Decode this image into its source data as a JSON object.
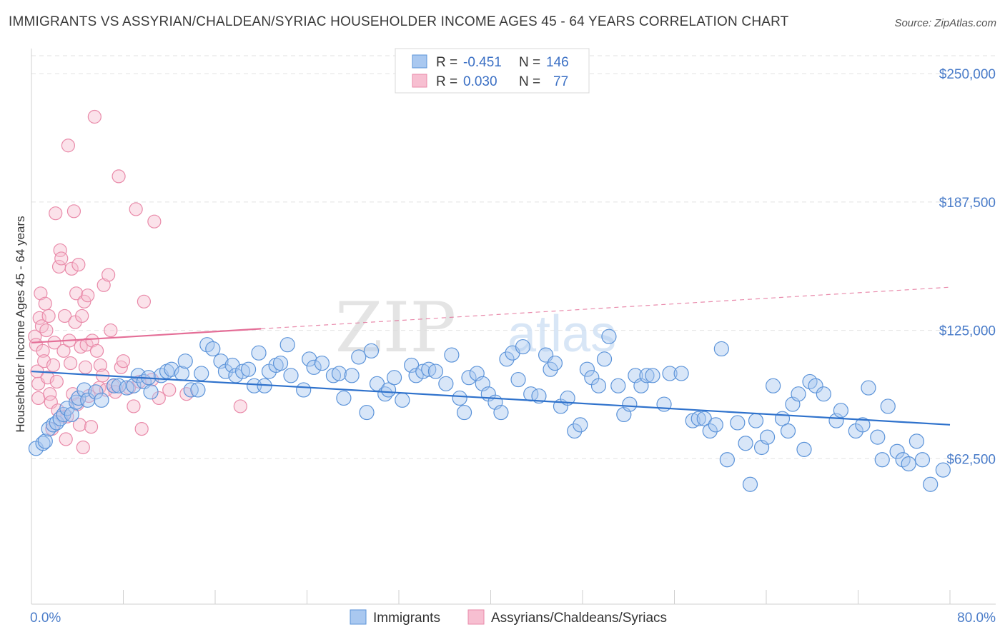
{
  "title": "IMMIGRANTS VS ASSYRIAN/CHALDEAN/SYRIAC HOUSEHOLDER INCOME AGES 45 - 64 YEARS CORRELATION CHART",
  "source": "Source: ZipAtlas.com",
  "watermark": {
    "zip": "ZIP",
    "atlas": "atlas"
  },
  "colors": {
    "blue_fill": "#a9c8f0",
    "blue_stroke": "#5b93d9",
    "blue_line": "#2f72cc",
    "pink_fill": "#f7bfd1",
    "pink_stroke": "#e98aa9",
    "pink_line": "#e46e97",
    "grid": "#e2e2e2",
    "tick_label": "#4a7cc9"
  },
  "legend": {
    "rows": [
      {
        "r_label": "R =",
        "r_value": "-0.451",
        "n_label": "N =",
        "n_value": "146"
      },
      {
        "r_label": "R =",
        "r_value": "0.030",
        "n_label": "N =",
        "n_value": "77"
      }
    ]
  },
  "chart_data": {
    "type": "scatter",
    "title": "IMMIGRANTS VS ASSYRIAN/CHALDEAN/SYRIAC HOUSEHOLDER INCOME AGES 45 - 64 YEARS CORRELATION CHART",
    "xlabel": "",
    "ylabel": "Householder Income Ages 45 - 64 years",
    "xlim": [
      0,
      80
    ],
    "ylim": [
      0,
      265000
    ],
    "x_tick_labels": [
      "0.0%",
      "80.0%"
    ],
    "y_ticks": [
      62500,
      125000,
      187500,
      250000
    ],
    "y_tick_labels": [
      "$62,500",
      "$125,000",
      "$187,500",
      "$250,000"
    ],
    "grid": true,
    "legend_position": "top-center",
    "series": [
      {
        "name": "Immigrants",
        "R": -0.451,
        "N": 146,
        "trend": {
          "x": [
            0,
            80
          ],
          "y": [
            105000,
            79000
          ],
          "dashed_from": null
        },
        "points": [
          [
            0.4,
            67500
          ],
          [
            1.0,
            70000
          ],
          [
            1.2,
            71000
          ],
          [
            1.5,
            77000
          ],
          [
            1.9,
            79000
          ],
          [
            2.2,
            80000
          ],
          [
            2.5,
            82000
          ],
          [
            2.8,
            84000
          ],
          [
            3.1,
            87000
          ],
          [
            3.5,
            84000
          ],
          [
            3.9,
            90000
          ],
          [
            4.1,
            92000
          ],
          [
            4.6,
            96000
          ],
          [
            4.9,
            91000
          ],
          [
            5.6,
            95000
          ],
          [
            6.1,
            91000
          ],
          [
            7.2,
            98000
          ],
          [
            7.6,
            98000
          ],
          [
            8.3,
            97000
          ],
          [
            8.9,
            98000
          ],
          [
            9.3,
            103000
          ],
          [
            9.8,
            100000
          ],
          [
            10.2,
            102000
          ],
          [
            10.4,
            95000
          ],
          [
            11.3,
            103000
          ],
          [
            11.8,
            105000
          ],
          [
            12.2,
            106000
          ],
          [
            13.1,
            104000
          ],
          [
            13.4,
            110000
          ],
          [
            13.9,
            96000
          ],
          [
            14.5,
            96000
          ],
          [
            14.8,
            104000
          ],
          [
            15.3,
            118000
          ],
          [
            15.8,
            116000
          ],
          [
            16.5,
            110000
          ],
          [
            16.9,
            105000
          ],
          [
            17.5,
            108000
          ],
          [
            17.8,
            103000
          ],
          [
            18.4,
            105000
          ],
          [
            18.9,
            106000
          ],
          [
            19.4,
            98000
          ],
          [
            19.8,
            114000
          ],
          [
            20.3,
            98000
          ],
          [
            20.7,
            105000
          ],
          [
            21.3,
            108000
          ],
          [
            21.7,
            109000
          ],
          [
            22.3,
            118000
          ],
          [
            22.6,
            103000
          ],
          [
            23.7,
            96000
          ],
          [
            24.2,
            111000
          ],
          [
            24.6,
            107000
          ],
          [
            25.3,
            109000
          ],
          [
            26.3,
            103000
          ],
          [
            26.8,
            104000
          ],
          [
            27.2,
            92000
          ],
          [
            27.9,
            103000
          ],
          [
            28.5,
            112000
          ],
          [
            29.2,
            85000
          ],
          [
            29.6,
            115000
          ],
          [
            30.1,
            99000
          ],
          [
            30.8,
            94000
          ],
          [
            31.1,
            96000
          ],
          [
            31.6,
            102000
          ],
          [
            32.3,
            91000
          ],
          [
            33.1,
            108000
          ],
          [
            33.5,
            103000
          ],
          [
            34.1,
            105000
          ],
          [
            34.6,
            106000
          ],
          [
            35.2,
            105000
          ],
          [
            36.1,
            99000
          ],
          [
            36.6,
            113000
          ],
          [
            37.3,
            92000
          ],
          [
            37.7,
            85000
          ],
          [
            38.1,
            102000
          ],
          [
            38.8,
            104000
          ],
          [
            39.3,
            99000
          ],
          [
            39.8,
            94000
          ],
          [
            40.4,
            90000
          ],
          [
            40.9,
            85000
          ],
          [
            41.4,
            111000
          ],
          [
            41.9,
            114000
          ],
          [
            42.4,
            101000
          ],
          [
            42.8,
            117000
          ],
          [
            43.5,
            94000
          ],
          [
            44.2,
            93000
          ],
          [
            44.8,
            113000
          ],
          [
            45.2,
            106000
          ],
          [
            45.6,
            109000
          ],
          [
            46.1,
            88000
          ],
          [
            46.7,
            92000
          ],
          [
            47.3,
            76000
          ],
          [
            47.8,
            79000
          ],
          [
            48.4,
            106000
          ],
          [
            48.8,
            102000
          ],
          [
            49.4,
            98000
          ],
          [
            49.9,
            111000
          ],
          [
            50.3,
            122000
          ],
          [
            51.1,
            98000
          ],
          [
            51.6,
            84000
          ],
          [
            52.1,
            89000
          ],
          [
            52.6,
            103000
          ],
          [
            53.1,
            98000
          ],
          [
            53.6,
            103000
          ],
          [
            54.1,
            103000
          ],
          [
            55.1,
            89000
          ],
          [
            55.6,
            104000
          ],
          [
            56.6,
            104000
          ],
          [
            57.6,
            81000
          ],
          [
            58.1,
            82000
          ],
          [
            58.6,
            82000
          ],
          [
            59.1,
            76000
          ],
          [
            59.6,
            79000
          ],
          [
            60.1,
            116000
          ],
          [
            60.6,
            62000
          ],
          [
            61.5,
            80000
          ],
          [
            62.2,
            70000
          ],
          [
            62.6,
            50000
          ],
          [
            63.1,
            81000
          ],
          [
            63.6,
            68000
          ],
          [
            64.1,
            73000
          ],
          [
            64.6,
            98000
          ],
          [
            65.4,
            82000
          ],
          [
            65.9,
            76000
          ],
          [
            66.3,
            89000
          ],
          [
            66.8,
            94000
          ],
          [
            67.3,
            67000
          ],
          [
            67.8,
            100000
          ],
          [
            68.3,
            98000
          ],
          [
            69.0,
            94000
          ],
          [
            70.1,
            81000
          ],
          [
            70.5,
            86000
          ],
          [
            71.8,
            76000
          ],
          [
            72.4,
            79000
          ],
          [
            72.9,
            97000
          ],
          [
            73.7,
            73000
          ],
          [
            74.1,
            62000
          ],
          [
            74.6,
            88000
          ],
          [
            75.4,
            66000
          ],
          [
            75.9,
            62000
          ],
          [
            76.4,
            60000
          ],
          [
            77.1,
            71000
          ],
          [
            77.6,
            62000
          ],
          [
            78.3,
            50000
          ],
          [
            79.4,
            57000
          ]
        ]
      },
      {
        "name": "Assyrians/Chaldeans/Syriacs",
        "R": 0.03,
        "N": 77,
        "trend": {
          "x": [
            0,
            80
          ],
          "y": [
            119000,
            146000
          ],
          "solid_until_x": 20
        },
        "points": [
          [
            0.3,
            122000
          ],
          [
            0.4,
            118000
          ],
          [
            0.5,
            105000
          ],
          [
            0.6,
            99000
          ],
          [
            0.6,
            92000
          ],
          [
            0.7,
            131000
          ],
          [
            0.8,
            143000
          ],
          [
            0.9,
            127000
          ],
          [
            1.0,
            115000
          ],
          [
            1.1,
            110000
          ],
          [
            1.2,
            138000
          ],
          [
            1.3,
            125000
          ],
          [
            1.4,
            102000
          ],
          [
            1.5,
            132000
          ],
          [
            1.6,
            94000
          ],
          [
            1.7,
            90000
          ],
          [
            1.8,
            77000
          ],
          [
            1.9,
            108000
          ],
          [
            2.0,
            119000
          ],
          [
            2.1,
            182000
          ],
          [
            2.2,
            100000
          ],
          [
            2.3,
            86000
          ],
          [
            2.4,
            156000
          ],
          [
            2.5,
            164000
          ],
          [
            2.6,
            160000
          ],
          [
            2.7,
            83000
          ],
          [
            2.8,
            115000
          ],
          [
            2.9,
            132000
          ],
          [
            3.0,
            72000
          ],
          [
            3.1,
            83000
          ],
          [
            3.2,
            215000
          ],
          [
            3.3,
            120000
          ],
          [
            3.4,
            109000
          ],
          [
            3.5,
            155000
          ],
          [
            3.6,
            94000
          ],
          [
            3.7,
            183000
          ],
          [
            3.8,
            129000
          ],
          [
            3.9,
            143000
          ],
          [
            4.0,
            89000
          ],
          [
            4.1,
            157000
          ],
          [
            4.2,
            79000
          ],
          [
            4.3,
            117000
          ],
          [
            4.4,
            132000
          ],
          [
            4.5,
            68000
          ],
          [
            4.6,
            139000
          ],
          [
            4.7,
            107000
          ],
          [
            4.8,
            118000
          ],
          [
            4.9,
            142000
          ],
          [
            5.0,
            93000
          ],
          [
            5.2,
            78000
          ],
          [
            5.3,
            120000
          ],
          [
            5.5,
            229000
          ],
          [
            5.7,
            115000
          ],
          [
            5.9,
            97000
          ],
          [
            6.0,
            108000
          ],
          [
            6.2,
            103000
          ],
          [
            6.3,
            147000
          ],
          [
            6.5,
            96000
          ],
          [
            6.7,
            152000
          ],
          [
            6.9,
            125000
          ],
          [
            7.1,
            98000
          ],
          [
            7.3,
            95000
          ],
          [
            7.6,
            200000
          ],
          [
            7.8,
            107000
          ],
          [
            8.0,
            110000
          ],
          [
            8.5,
            97000
          ],
          [
            8.9,
            88000
          ],
          [
            9.1,
            184000
          ],
          [
            9.4,
            100000
          ],
          [
            9.6,
            77000
          ],
          [
            9.8,
            139000
          ],
          [
            10.5,
            101000
          ],
          [
            10.7,
            178000
          ],
          [
            11.1,
            92000
          ],
          [
            12.0,
            96000
          ],
          [
            13.5,
            94000
          ],
          [
            18.2,
            88000
          ]
        ]
      }
    ]
  },
  "bottom_legend": {
    "series1": "Immigrants",
    "series2": "Assyrians/Chaldeans/Syriacs"
  }
}
